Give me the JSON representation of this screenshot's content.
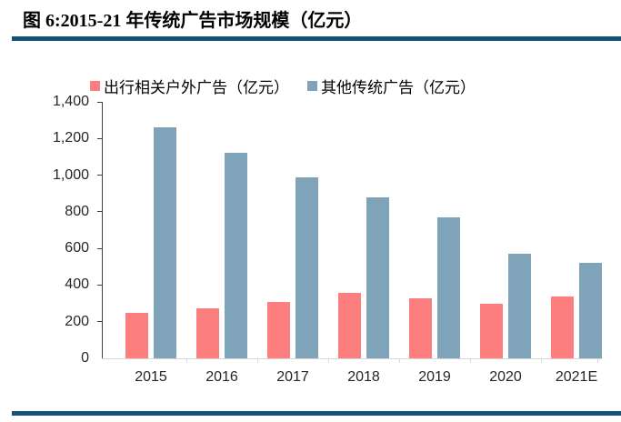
{
  "title": "图 6:2015-21 年传统广告市场规模（亿元）",
  "colors": {
    "divider_rule": "#15527A",
    "series1": "#FC7E7E",
    "series2": "#7FA3B8",
    "axis_line": "#404040",
    "baseline": "#D9D9D9",
    "tick_label": "#262626",
    "title_text": "#000000"
  },
  "chart_data": {
    "type": "bar",
    "title": "图 6:2015-21 年传统广告市场规模（亿元）",
    "categories": [
      "2015",
      "2016",
      "2017",
      "2018",
      "2019",
      "2020",
      "2021E"
    ],
    "series": [
      {
        "name": "出行相关户外广告（亿元）",
        "color": "#FC7E7E",
        "values": [
          250,
          275,
          310,
          355,
          330,
          300,
          340
        ]
      },
      {
        "name": "其他传统广告（亿元）",
        "color": "#7FA3B8",
        "values": [
          1260,
          1120,
          990,
          880,
          770,
          570,
          520
        ]
      }
    ],
    "xlabel": "",
    "ylabel": "",
    "ylim": [
      0,
      1400
    ],
    "ytick_step": 200,
    "ytick_labels": [
      "0",
      "200",
      "400",
      "600",
      "800",
      "1,000",
      "1,200",
      "1,400"
    ],
    "legend_position": "top",
    "grid": false
  }
}
